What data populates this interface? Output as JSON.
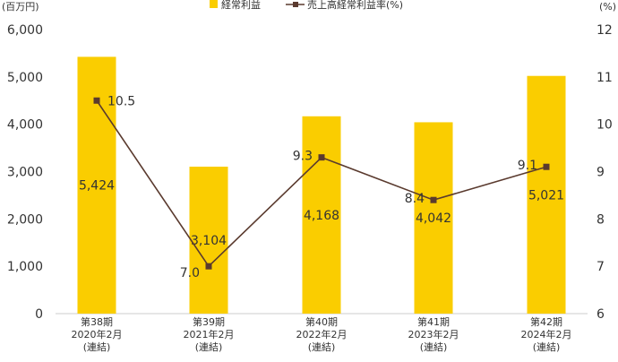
{
  "chart_data": {
    "type": "bar+line",
    "categories": [
      [
        "第38期",
        "2020年2月",
        "(連結)"
      ],
      [
        "第39期",
        "2021年2月",
        "(連結)"
      ],
      [
        "第40期",
        "2022年2月",
        "(連結)"
      ],
      [
        "第41期",
        "2023年2月",
        "(連結)"
      ],
      [
        "第42期",
        "2024年2月",
        "(連結)"
      ]
    ],
    "left_axis": {
      "unit": "(百万円)",
      "ylim": [
        0,
        6000
      ],
      "ticks": [
        "0",
        "1,000",
        "2,000",
        "3,000",
        "4,000",
        "5,000",
        "6,000"
      ]
    },
    "right_axis": {
      "unit": "(%)",
      "ylim": [
        6,
        12
      ],
      "ticks": [
        "6",
        "7",
        "8",
        "9",
        "10",
        "11",
        "12"
      ]
    },
    "series": [
      {
        "name": "経常利益",
        "type": "bar",
        "axis": "left",
        "color": "#FACD00",
        "values": [
          5424,
          3104,
          4168,
          4042,
          5021
        ],
        "labels": [
          "5,424",
          "3,104",
          "4,168",
          "4,042",
          "5,021"
        ]
      },
      {
        "name": "売上高経常利益率(%)",
        "type": "line",
        "axis": "right",
        "color": "#5A3A2E",
        "values": [
          10.5,
          7.0,
          9.3,
          8.4,
          9.1
        ],
        "labels": [
          "10.5",
          "7.0",
          "9.3",
          "8.4",
          "9.1"
        ]
      }
    ],
    "grid": false,
    "legend": "top-center"
  }
}
